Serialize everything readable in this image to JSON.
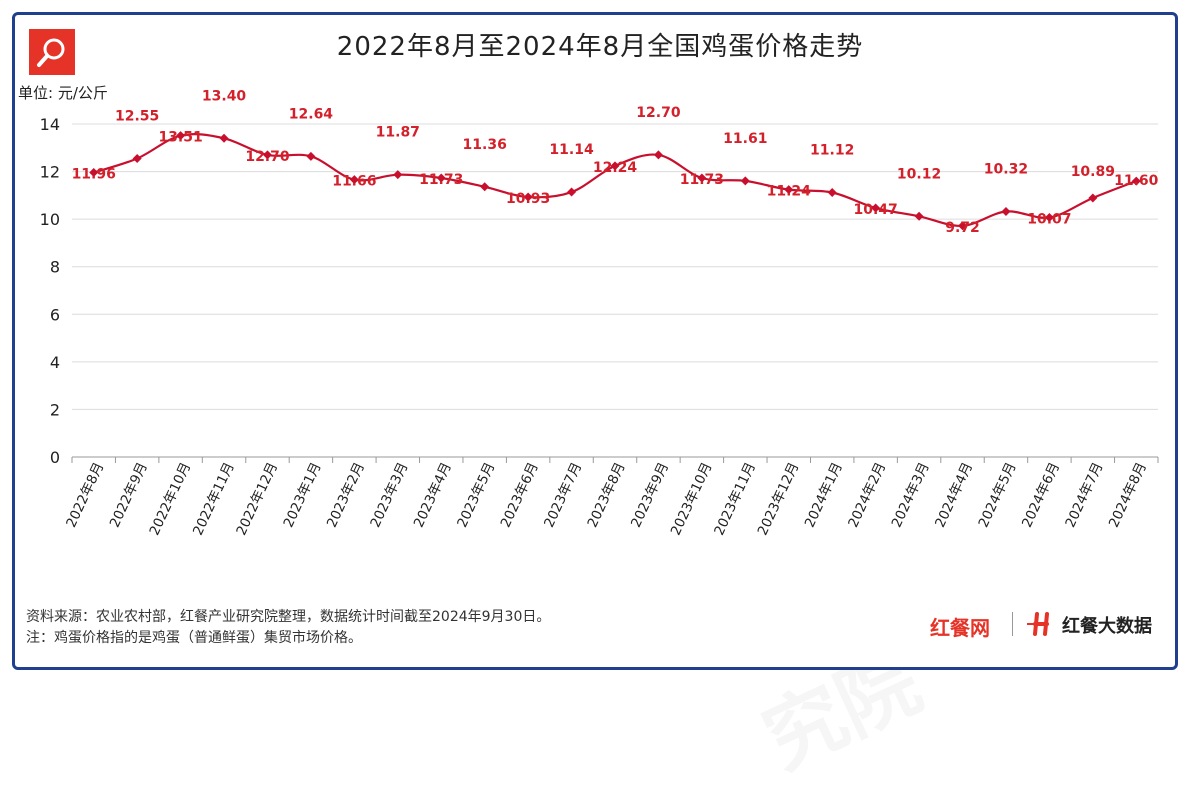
{
  "title": "2022年8月至2024年8月全国鸡蛋价格走势",
  "unit_label": "单位: 元/公斤",
  "source_text": "资料来源：农业农村部，红餐产业研究院整理，数据统计时间截至2024年9月30日。",
  "note_text": "注：鸡蛋价格指的是鸡蛋（普通鲜蛋）集贸市场价格。",
  "brand_left": "红餐网",
  "brand_right": "红餐大数据",
  "watermark": "红餐产业研究院",
  "colors": {
    "line": "#c8102e",
    "label": "#d3212c",
    "frame": "#1f3f8f",
    "accent": "#e53327"
  },
  "icons": {
    "logo": "search-icon",
    "brand": "h-logo-icon"
  },
  "chart_data": {
    "type": "line",
    "categories": [
      "2022年8月",
      "2022年9月",
      "2022年10月",
      "2022年11月",
      "2022年12月",
      "2023年1月",
      "2023年2月",
      "2023年3月",
      "2023年4月",
      "2023年5月",
      "2023年6月",
      "2023年7月",
      "2023年8月",
      "2023年9月",
      "2023年10月",
      "2023年11月",
      "2023年12月",
      "2024年1月",
      "2024年2月",
      "2024年3月",
      "2024年4月",
      "2024年5月",
      "2024年6月",
      "2024年7月",
      "2024年8月"
    ],
    "values": [
      11.96,
      12.55,
      13.51,
      13.4,
      12.7,
      12.64,
      11.66,
      11.87,
      11.73,
      11.36,
      10.93,
      11.14,
      12.24,
      12.7,
      11.73,
      11.61,
      11.24,
      11.12,
      10.47,
      10.12,
      9.72,
      10.32,
      10.07,
      10.89,
      11.6
    ],
    "ylim": [
      0,
      14
    ],
    "yticks": [
      0,
      2,
      4,
      6,
      8,
      10,
      12,
      14
    ],
    "grid": true,
    "legend": "none"
  }
}
